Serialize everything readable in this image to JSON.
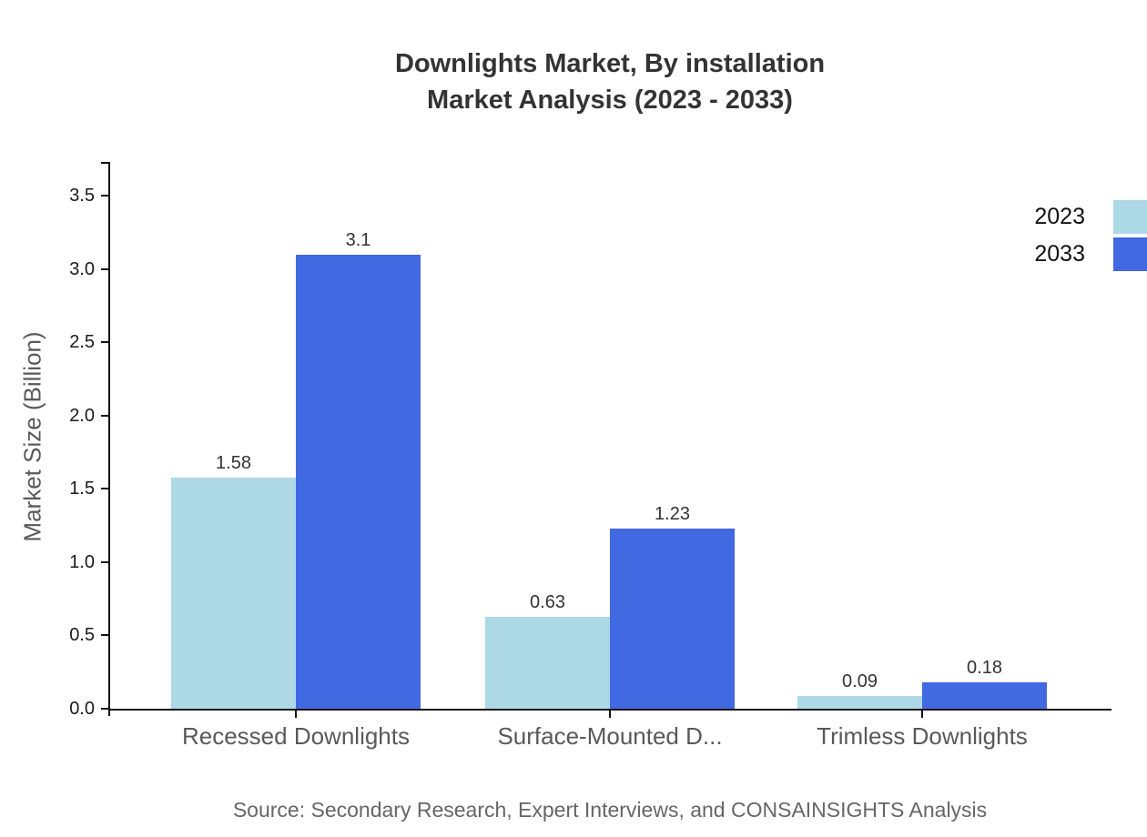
{
  "source_note": "Source: Secondary Research, Expert Interviews, and CONSAINSIGHTS Analysis",
  "chart_data": {
    "type": "bar",
    "title": "Downlights Market, By installation",
    "subtitle": "Market Analysis (2023 - 2033)",
    "categories": [
      "Recessed Downlights",
      "Surface-Mounted D...",
      "Trimless Downlights"
    ],
    "series": [
      {
        "name": "2023",
        "color": "#ADD8E6",
        "values": [
          1.58,
          0.63,
          0.09
        ]
      },
      {
        "name": "2033",
        "color": "#4169E1",
        "values": [
          3.1,
          1.23,
          0.18
        ]
      }
    ],
    "xlabel": "",
    "ylabel": "Market Size (Billion)",
    "yticks": [
      "0.0",
      "0.5",
      "1.0",
      "1.5",
      "2.0",
      "2.5",
      "3.0",
      "3.5"
    ],
    "ylim": [
      0,
      3.73
    ],
    "grid": false,
    "legend_position": "top-right",
    "value_labels_shown": true,
    "axis_color": "#111111",
    "text_gray": "#595959"
  }
}
